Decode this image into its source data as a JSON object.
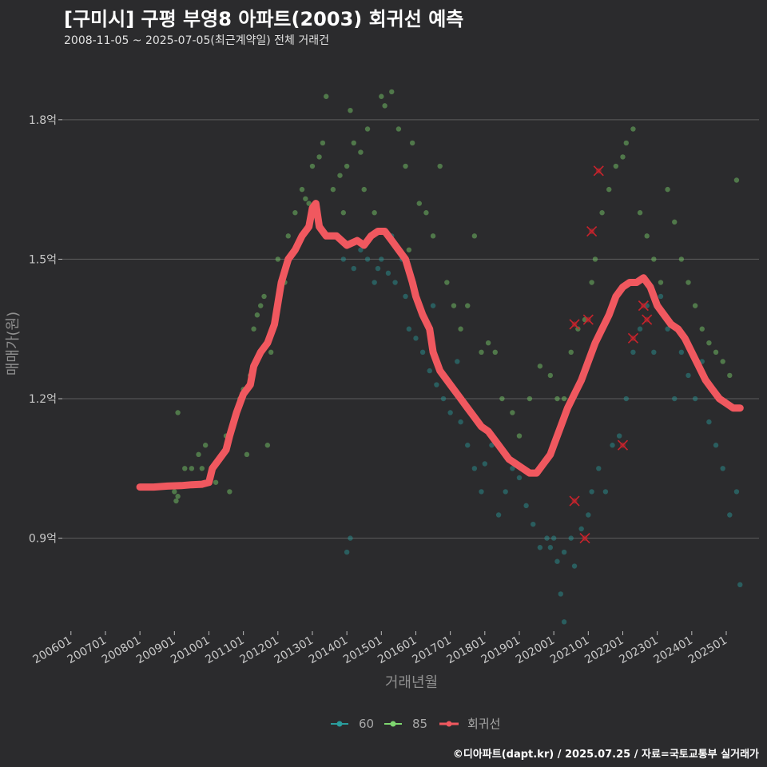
{
  "chart_data": {
    "type": "scatter",
    "title": "[구미시] 구평 부영8 아파트(2003) 회귀선 예측",
    "subtitle": "2008-11-05 ~ 2025-07-05(최근계약일) 전체 거래건",
    "xlabel": "거래년월",
    "ylabel": "매매가(원)",
    "ylim": [
      0.7,
      1.92
    ],
    "y_ticks": [
      {
        "v": 0.9,
        "label": "0.9억"
      },
      {
        "v": 1.2,
        "label": "1.2억"
      },
      {
        "v": 1.5,
        "label": "1.5억"
      },
      {
        "v": 1.8,
        "label": "1.8억"
      }
    ],
    "x_range": [
      2005.75,
      2025.95
    ],
    "x_ticks": [
      {
        "v": 2006,
        "label": "200601"
      },
      {
        "v": 2007,
        "label": "200701"
      },
      {
        "v": 2008,
        "label": "200801"
      },
      {
        "v": 2009,
        "label": "200901"
      },
      {
        "v": 2010,
        "label": "201001"
      },
      {
        "v": 2011,
        "label": "201101"
      },
      {
        "v": 2012,
        "label": "201201"
      },
      {
        "v": 2013,
        "label": "201301"
      },
      {
        "v": 2014,
        "label": "201401"
      },
      {
        "v": 2015,
        "label": "201501"
      },
      {
        "v": 2016,
        "label": "201601"
      },
      {
        "v": 2017,
        "label": "201701"
      },
      {
        "v": 2018,
        "label": "201801"
      },
      {
        "v": 2019,
        "label": "201901"
      },
      {
        "v": 2020,
        "label": "202001"
      },
      {
        "v": 2021,
        "label": "202101"
      },
      {
        "v": 2022,
        "label": "202201"
      },
      {
        "v": 2023,
        "label": "202301"
      },
      {
        "v": 2024,
        "label": "202401"
      },
      {
        "v": 2025,
        "label": "202501"
      }
    ],
    "colors": {
      "s60": "#2a9d9d",
      "s85": "#7ed66f",
      "reg": "#f0585f",
      "x": "#c8232c"
    },
    "legend": [
      "60",
      "85",
      "회귀선"
    ],
    "series": [
      {
        "name": "60",
        "points": [
          [
            2014.0,
            0.87
          ],
          [
            2014.1,
            0.9
          ],
          [
            2013.9,
            1.5
          ],
          [
            2014.2,
            1.48
          ],
          [
            2014.4,
            1.52
          ],
          [
            2014.6,
            1.5
          ],
          [
            2014.8,
            1.45
          ],
          [
            2015.0,
            1.5
          ],
          [
            2015.2,
            1.47
          ],
          [
            2015.4,
            1.45
          ],
          [
            2015.6,
            1.5
          ],
          [
            2015.8,
            1.35
          ],
          [
            2016.0,
            1.33
          ],
          [
            2016.2,
            1.3
          ],
          [
            2016.4,
            1.26
          ],
          [
            2016.6,
            1.23
          ],
          [
            2016.8,
            1.2
          ],
          [
            2017.0,
            1.17
          ],
          [
            2017.1,
            1.22
          ],
          [
            2017.3,
            1.15
          ],
          [
            2017.5,
            1.1
          ],
          [
            2017.7,
            1.05
          ],
          [
            2017.9,
            1.0
          ],
          [
            2018.0,
            1.06
          ],
          [
            2018.2,
            1.1
          ],
          [
            2018.4,
            0.95
          ],
          [
            2018.6,
            1.0
          ],
          [
            2018.8,
            1.05
          ],
          [
            2019.0,
            1.03
          ],
          [
            2019.2,
            0.97
          ],
          [
            2019.4,
            0.93
          ],
          [
            2019.6,
            0.88
          ],
          [
            2019.8,
            0.9
          ],
          [
            2020.0,
            0.9
          ],
          [
            2020.1,
            0.85
          ],
          [
            2020.2,
            0.78
          ],
          [
            2020.3,
            0.87
          ],
          [
            2020.5,
            0.9
          ],
          [
            2020.6,
            0.84
          ],
          [
            2020.8,
            0.92
          ],
          [
            2021.0,
            0.95
          ],
          [
            2021.1,
            1.0
          ],
          [
            2021.3,
            1.05
          ],
          [
            2021.5,
            1.0
          ],
          [
            2021.7,
            1.1
          ],
          [
            2021.9,
            1.12
          ],
          [
            2022.1,
            1.2
          ],
          [
            2022.3,
            1.3
          ],
          [
            2022.5,
            1.35
          ],
          [
            2022.7,
            1.4
          ],
          [
            2022.9,
            1.3
          ],
          [
            2023.1,
            1.42
          ],
          [
            2023.3,
            1.35
          ],
          [
            2023.5,
            1.2
          ],
          [
            2023.7,
            1.3
          ],
          [
            2023.9,
            1.25
          ],
          [
            2024.1,
            1.2
          ],
          [
            2024.3,
            1.28
          ],
          [
            2024.5,
            1.15
          ],
          [
            2024.7,
            1.1
          ],
          [
            2024.9,
            1.05
          ],
          [
            2025.1,
            0.95
          ],
          [
            2025.3,
            1.0
          ],
          [
            2025.4,
            0.8
          ],
          [
            2020.3,
            0.72
          ],
          [
            2019.9,
            0.88
          ],
          [
            2017.2,
            1.28
          ],
          [
            2016.5,
            1.4
          ],
          [
            2015.3,
            1.55
          ],
          [
            2015.7,
            1.42
          ],
          [
            2014.9,
            1.48
          ]
        ]
      },
      {
        "name": "85",
        "points": [
          [
            2009.0,
            1.0
          ],
          [
            2009.05,
            0.98
          ],
          [
            2009.1,
            0.99
          ],
          [
            2009.1,
            1.17
          ],
          [
            2009.3,
            1.05
          ],
          [
            2009.5,
            1.05
          ],
          [
            2009.7,
            1.08
          ],
          [
            2009.9,
            1.1
          ],
          [
            2010.1,
            1.05
          ],
          [
            2010.2,
            1.02
          ],
          [
            2010.4,
            1.08
          ],
          [
            2010.5,
            1.12
          ],
          [
            2010.7,
            1.15
          ],
          [
            2010.9,
            1.2
          ],
          [
            2011.0,
            1.22
          ],
          [
            2011.1,
            1.08
          ],
          [
            2011.2,
            1.25
          ],
          [
            2011.3,
            1.35
          ],
          [
            2011.4,
            1.38
          ],
          [
            2011.5,
            1.4
          ],
          [
            2011.6,
            1.42
          ],
          [
            2011.8,
            1.3
          ],
          [
            2012.0,
            1.5
          ],
          [
            2012.2,
            1.45
          ],
          [
            2012.3,
            1.55
          ],
          [
            2012.5,
            1.6
          ],
          [
            2012.7,
            1.65
          ],
          [
            2012.8,
            1.63
          ],
          [
            2013.0,
            1.7
          ],
          [
            2013.2,
            1.72
          ],
          [
            2013.3,
            1.75
          ],
          [
            2013.4,
            1.85
          ],
          [
            2013.6,
            1.65
          ],
          [
            2013.8,
            1.68
          ],
          [
            2014.0,
            1.7
          ],
          [
            2014.1,
            1.82
          ],
          [
            2014.2,
            1.75
          ],
          [
            2014.4,
            1.73
          ],
          [
            2014.6,
            1.78
          ],
          [
            2014.8,
            1.6
          ],
          [
            2015.0,
            1.85
          ],
          [
            2015.1,
            1.83
          ],
          [
            2015.3,
            1.86
          ],
          [
            2015.5,
            1.78
          ],
          [
            2015.7,
            1.7
          ],
          [
            2015.9,
            1.75
          ],
          [
            2016.1,
            1.62
          ],
          [
            2016.3,
            1.6
          ],
          [
            2016.5,
            1.55
          ],
          [
            2016.7,
            1.7
          ],
          [
            2016.9,
            1.45
          ],
          [
            2017.1,
            1.4
          ],
          [
            2017.3,
            1.35
          ],
          [
            2017.5,
            1.4
          ],
          [
            2017.7,
            1.55
          ],
          [
            2017.9,
            1.3
          ],
          [
            2018.1,
            1.32
          ],
          [
            2018.3,
            1.3
          ],
          [
            2018.5,
            1.2
          ],
          [
            2018.8,
            1.17
          ],
          [
            2019.0,
            1.12
          ],
          [
            2019.3,
            1.2
          ],
          [
            2019.6,
            1.27
          ],
          [
            2019.9,
            1.25
          ],
          [
            2020.1,
            1.2
          ],
          [
            2020.3,
            1.2
          ],
          [
            2020.5,
            1.3
          ],
          [
            2020.7,
            1.35
          ],
          [
            2020.9,
            1.37
          ],
          [
            2021.1,
            1.45
          ],
          [
            2021.2,
            1.5
          ],
          [
            2021.4,
            1.6
          ],
          [
            2021.6,
            1.65
          ],
          [
            2021.8,
            1.7
          ],
          [
            2022.0,
            1.72
          ],
          [
            2022.1,
            1.75
          ],
          [
            2022.3,
            1.78
          ],
          [
            2022.5,
            1.6
          ],
          [
            2022.7,
            1.55
          ],
          [
            2022.9,
            1.5
          ],
          [
            2023.1,
            1.45
          ],
          [
            2023.3,
            1.65
          ],
          [
            2023.5,
            1.58
          ],
          [
            2023.7,
            1.5
          ],
          [
            2023.9,
            1.45
          ],
          [
            2024.1,
            1.4
          ],
          [
            2024.3,
            1.35
          ],
          [
            2024.5,
            1.32
          ],
          [
            2024.7,
            1.3
          ],
          [
            2024.9,
            1.28
          ],
          [
            2025.1,
            1.25
          ],
          [
            2025.3,
            1.67
          ],
          [
            2009.8,
            1.05
          ],
          [
            2010.6,
            1.0
          ],
          [
            2011.7,
            1.1
          ],
          [
            2012.9,
            1.62
          ],
          [
            2013.9,
            1.6
          ],
          [
            2014.5,
            1.65
          ],
          [
            2015.8,
            1.52
          ]
        ]
      },
      {
        "name": "회귀선",
        "points": [
          [
            2008.0,
            1.01
          ],
          [
            2008.4,
            1.01
          ],
          [
            2008.8,
            1.012
          ],
          [
            2009.2,
            1.013
          ],
          [
            2009.5,
            1.015
          ],
          [
            2009.8,
            1.016
          ],
          [
            2010.0,
            1.02
          ],
          [
            2010.1,
            1.05
          ],
          [
            2010.3,
            1.07
          ],
          [
            2010.5,
            1.09
          ],
          [
            2010.6,
            1.12
          ],
          [
            2010.8,
            1.17
          ],
          [
            2011.0,
            1.21
          ],
          [
            2011.2,
            1.23
          ],
          [
            2011.3,
            1.27
          ],
          [
            2011.5,
            1.3
          ],
          [
            2011.7,
            1.32
          ],
          [
            2011.9,
            1.36
          ],
          [
            2012.1,
            1.45
          ],
          [
            2012.3,
            1.5
          ],
          [
            2012.5,
            1.52
          ],
          [
            2012.7,
            1.55
          ],
          [
            2012.9,
            1.57
          ],
          [
            2013.0,
            1.61
          ],
          [
            2013.1,
            1.62
          ],
          [
            2013.2,
            1.57
          ],
          [
            2013.4,
            1.55
          ],
          [
            2013.7,
            1.55
          ],
          [
            2014.0,
            1.53
          ],
          [
            2014.3,
            1.54
          ],
          [
            2014.5,
            1.53
          ],
          [
            2014.7,
            1.55
          ],
          [
            2014.9,
            1.56
          ],
          [
            2015.1,
            1.56
          ],
          [
            2015.3,
            1.54
          ],
          [
            2015.5,
            1.52
          ],
          [
            2015.7,
            1.5
          ],
          [
            2015.9,
            1.45
          ],
          [
            2016.0,
            1.42
          ],
          [
            2016.2,
            1.38
          ],
          [
            2016.4,
            1.35
          ],
          [
            2016.5,
            1.3
          ],
          [
            2016.7,
            1.26
          ],
          [
            2016.9,
            1.24
          ],
          [
            2017.1,
            1.22
          ],
          [
            2017.3,
            1.2
          ],
          [
            2017.5,
            1.18
          ],
          [
            2017.7,
            1.16
          ],
          [
            2017.9,
            1.14
          ],
          [
            2018.1,
            1.13
          ],
          [
            2018.3,
            1.11
          ],
          [
            2018.5,
            1.09
          ],
          [
            2018.7,
            1.07
          ],
          [
            2018.9,
            1.06
          ],
          [
            2019.1,
            1.05
          ],
          [
            2019.3,
            1.04
          ],
          [
            2019.5,
            1.04
          ],
          [
            2019.7,
            1.06
          ],
          [
            2019.9,
            1.08
          ],
          [
            2020.0,
            1.1
          ],
          [
            2020.2,
            1.14
          ],
          [
            2020.4,
            1.18
          ],
          [
            2020.6,
            1.21
          ],
          [
            2020.8,
            1.24
          ],
          [
            2021.0,
            1.28
          ],
          [
            2021.2,
            1.32
          ],
          [
            2021.4,
            1.35
          ],
          [
            2021.6,
            1.38
          ],
          [
            2021.8,
            1.42
          ],
          [
            2022.0,
            1.44
          ],
          [
            2022.2,
            1.45
          ],
          [
            2022.4,
            1.45
          ],
          [
            2022.6,
            1.46
          ],
          [
            2022.8,
            1.44
          ],
          [
            2023.0,
            1.4
          ],
          [
            2023.2,
            1.38
          ],
          [
            2023.4,
            1.36
          ],
          [
            2023.6,
            1.35
          ],
          [
            2023.8,
            1.33
          ],
          [
            2024.0,
            1.3
          ],
          [
            2024.2,
            1.27
          ],
          [
            2024.4,
            1.24
          ],
          [
            2024.6,
            1.22
          ],
          [
            2024.8,
            1.2
          ],
          [
            2025.0,
            1.19
          ],
          [
            2025.2,
            1.18
          ],
          [
            2025.4,
            1.18
          ]
        ]
      }
    ],
    "flagged": [
      [
        2020.6,
        0.98
      ],
      [
        2020.9,
        0.9
      ],
      [
        2021.0,
        1.37
      ],
      [
        2021.1,
        1.56
      ],
      [
        2021.3,
        1.69
      ],
      [
        2022.0,
        1.1
      ],
      [
        2022.3,
        1.33
      ],
      [
        2022.6,
        1.4
      ],
      [
        2022.7,
        1.37
      ],
      [
        2020.6,
        1.36
      ]
    ]
  },
  "footer": "©디아파트(dapt.kr) / 2025.07.25 / 자료=국토교통부 실거래가"
}
